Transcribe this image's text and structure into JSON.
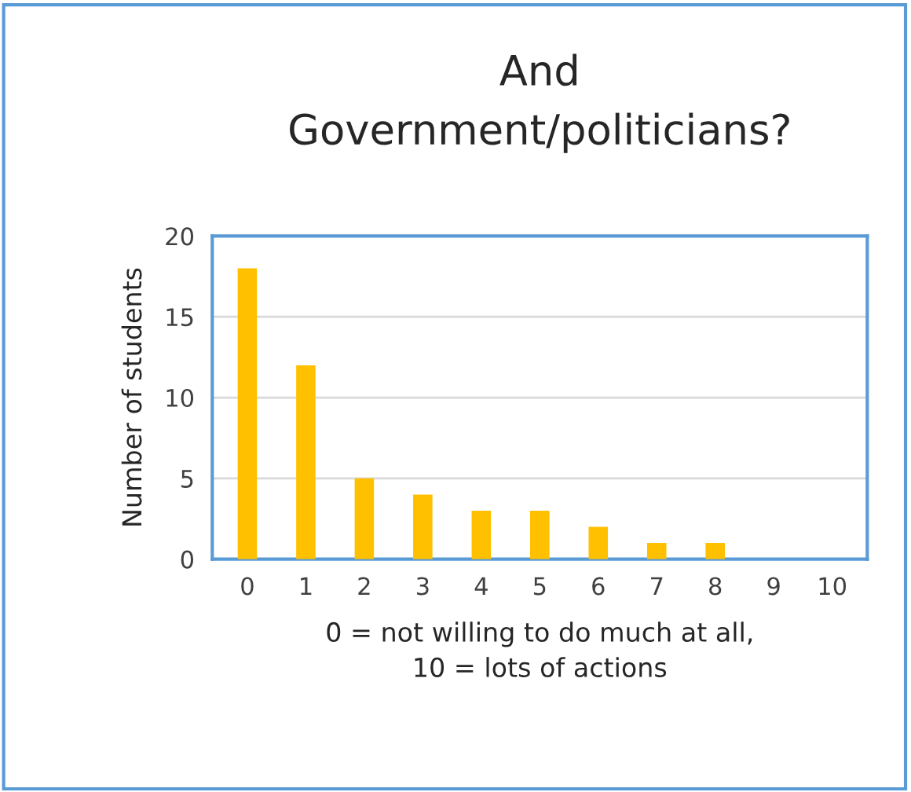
{
  "chart_data": {
    "type": "bar",
    "title": "And\nGovernment/politicians?",
    "categories": [
      "0",
      "1",
      "2",
      "3",
      "4",
      "5",
      "6",
      "7",
      "8",
      "9",
      "10"
    ],
    "values": [
      18,
      12,
      5,
      4,
      3,
      3,
      2,
      1,
      1,
      0,
      0
    ],
    "color": "#ffc000",
    "xlabel": "0 = not willing to do much at all,\n10 = lots of actions",
    "ylabel": "Number of students",
    "ylim": [
      0,
      20
    ],
    "yticks": [
      0,
      5,
      10,
      15,
      20
    ],
    "grid": "y",
    "legend": false
  }
}
